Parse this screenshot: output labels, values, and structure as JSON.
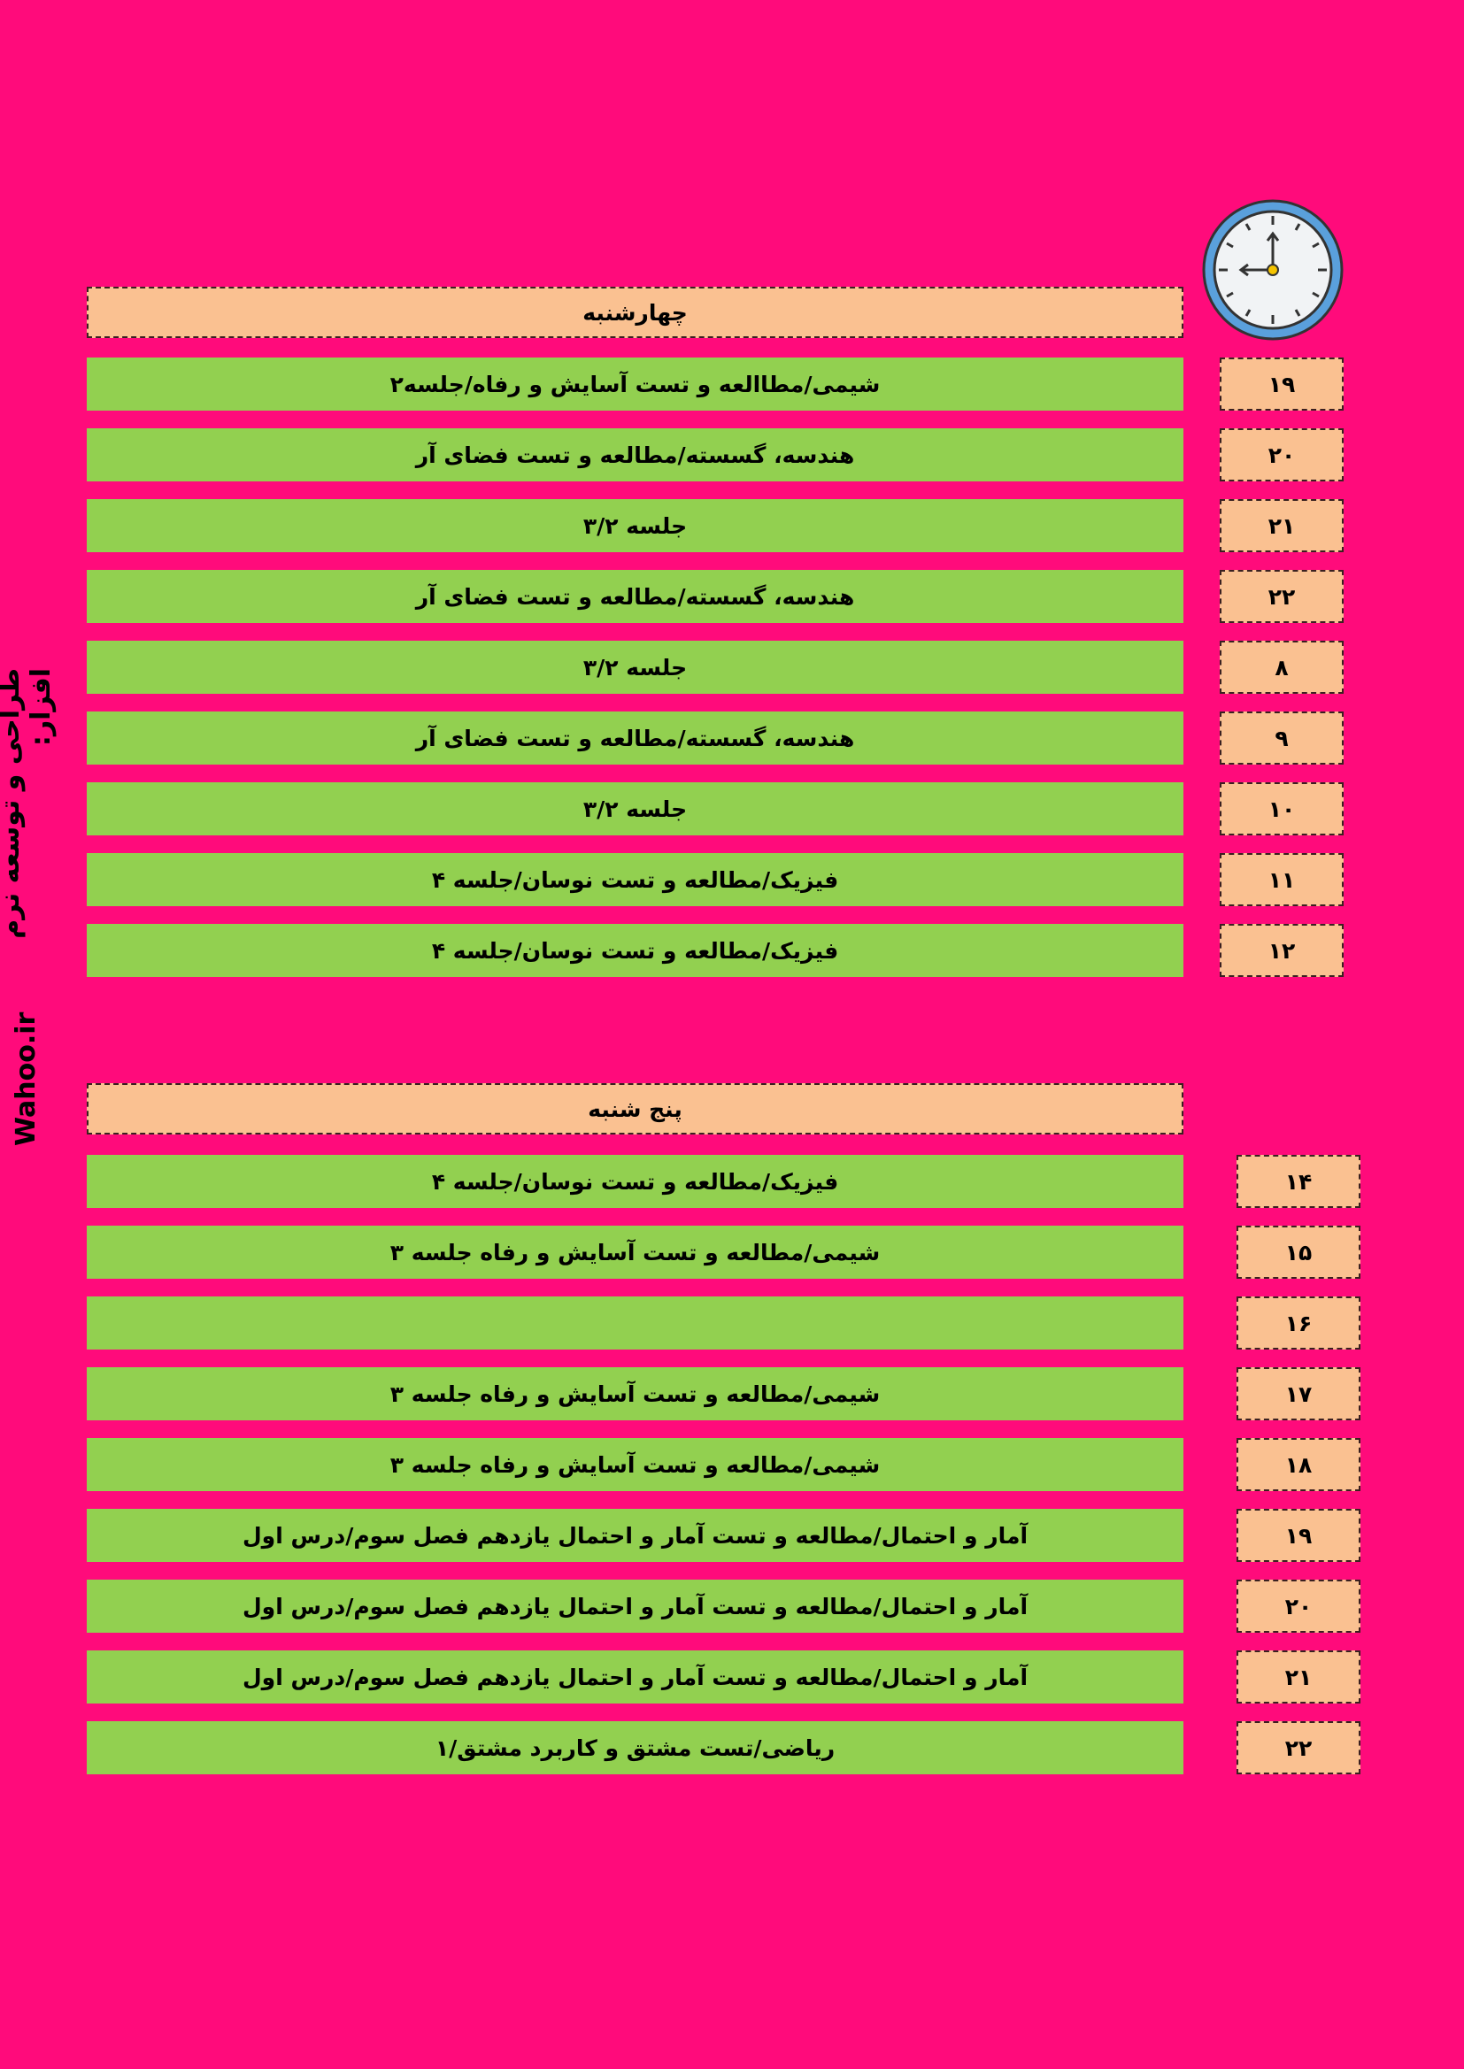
{
  "sidebar": {
    "credit_label": "طراحی و توسعه نرم افزار:",
    "site": "Wahoo.ir"
  },
  "clock_icon": "clock-icon",
  "colors": {
    "background": "#ff0b7b",
    "task": "#92d050",
    "header": "#fac191"
  },
  "sections": [
    {
      "day": "چهارشنبه",
      "rows": [
        {
          "hour": "۱۹",
          "task": "شیمی/مطاالعه و تست آسایش و رفاه/جلسه۲"
        },
        {
          "hour": "۲۰",
          "task": "هندسه، گسسته/مطالعه و تست فضای آر"
        },
        {
          "hour": "۲۱",
          "task": "جلسه ۳/۲"
        },
        {
          "hour": "۲۲",
          "task": "هندسه، گسسته/مطالعه و تست فضای آر"
        },
        {
          "hour": "۸",
          "task": "جلسه ۳/۲"
        },
        {
          "hour": "۹",
          "task": "هندسه، گسسته/مطالعه و تست فضای آر"
        },
        {
          "hour": "۱۰",
          "task": "جلسه ۳/۲"
        },
        {
          "hour": "۱۱",
          "task": "فیزیک/مطالعه و تست نوسان/جلسه ۴"
        },
        {
          "hour": "۱۲",
          "task": "فیزیک/مطالعه و تست نوسان/جلسه ۴"
        }
      ]
    },
    {
      "day": "پنج شنبه",
      "rows": [
        {
          "hour": "۱۴",
          "task": "فیزیک/مطالعه و تست نوسان/جلسه ۴"
        },
        {
          "hour": "۱۵",
          "task": "شیمی/مطالعه و تست آسایش و رفاه جلسه ۳"
        },
        {
          "hour": "۱۶",
          "task": ""
        },
        {
          "hour": "۱۷",
          "task": "شیمی/مطالعه و تست آسایش و رفاه جلسه ۳"
        },
        {
          "hour": "۱۸",
          "task": "شیمی/مطالعه و تست آسایش و رفاه جلسه ۳"
        },
        {
          "hour": "۱۹",
          "task": "آمار و احتمال/مطالعه و تست آمار و احتمال یازدهم فصل سوم/درس اول"
        },
        {
          "hour": "۲۰",
          "task": "آمار و احتمال/مطالعه و تست آمار و احتمال یازدهم فصل سوم/درس اول"
        },
        {
          "hour": "۲۱",
          "task": "آمار و احتمال/مطالعه و تست آمار و احتمال یازدهم فصل سوم/درس اول"
        },
        {
          "hour": "۲۲",
          "task": "ریاضی/تست مشتق و کاربرد مشتق/۱"
        }
      ]
    }
  ]
}
